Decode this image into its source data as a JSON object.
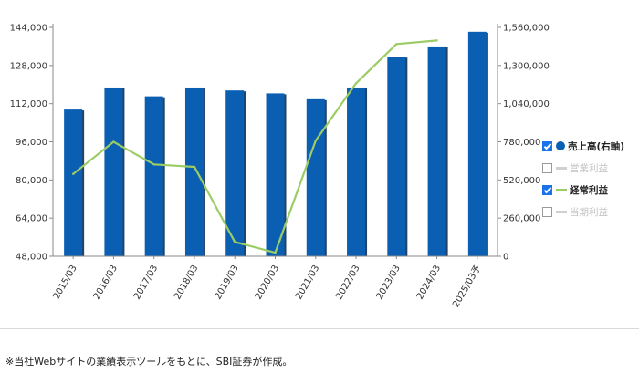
{
  "chart_data": {
    "type": "bar",
    "categories": [
      "2015/03",
      "2016/03",
      "2017/03",
      "2018/03",
      "2019/03",
      "2020/03",
      "2021/03",
      "2022/03",
      "2023/03",
      "2024/03",
      "2025/03予"
    ],
    "left_axis": {
      "ylim": [
        48000,
        144000
      ],
      "ticks": [
        "144,000",
        "128,000",
        "112,000",
        "96,000",
        "80,000",
        "64,000",
        "48,000"
      ],
      "tick_values": [
        144000,
        128000,
        112000,
        96000,
        80000,
        64000,
        48000
      ]
    },
    "right_axis": {
      "ylim": [
        0,
        1560000
      ],
      "ticks": [
        "1,560,000",
        "1,300,000",
        "1,040,000",
        "780,000",
        "520,000",
        "260,000",
        "0"
      ],
      "tick_values": [
        1560000,
        1300000,
        1040000,
        780000,
        520000,
        260000,
        0
      ]
    },
    "series": [
      {
        "name": "売上高(右軸)",
        "kind": "bar",
        "axis": "right",
        "color": "#0b5fb3",
        "values": [
          1000000,
          1150000,
          1090000,
          1150000,
          1130000,
          1110000,
          1070000,
          1150000,
          1360000,
          1430000,
          1530000
        ]
      },
      {
        "name": "経常利益",
        "kind": "line",
        "axis": "left",
        "color": "#9ccc65",
        "values": [
          82500,
          96000,
          86500,
          85500,
          54000,
          49500,
          96500,
          120500,
          137000,
          138500,
          null
        ]
      }
    ],
    "grid": false
  },
  "legend": {
    "items": [
      {
        "label": "売上高(右軸)",
        "checked": true,
        "marker": "circle",
        "color": "#0b5fb3"
      },
      {
        "label": "営業利益",
        "checked": false,
        "marker": "line",
        "color": "#d0d0d0"
      },
      {
        "label": "経常利益",
        "checked": true,
        "marker": "line",
        "color": "#9ccc65"
      },
      {
        "label": "当期利益",
        "checked": false,
        "marker": "line",
        "color": "#d0d0d0"
      }
    ]
  },
  "footnote": "※当社Webサイトの業績表示ツールをもとに、SBI証券が作成。"
}
